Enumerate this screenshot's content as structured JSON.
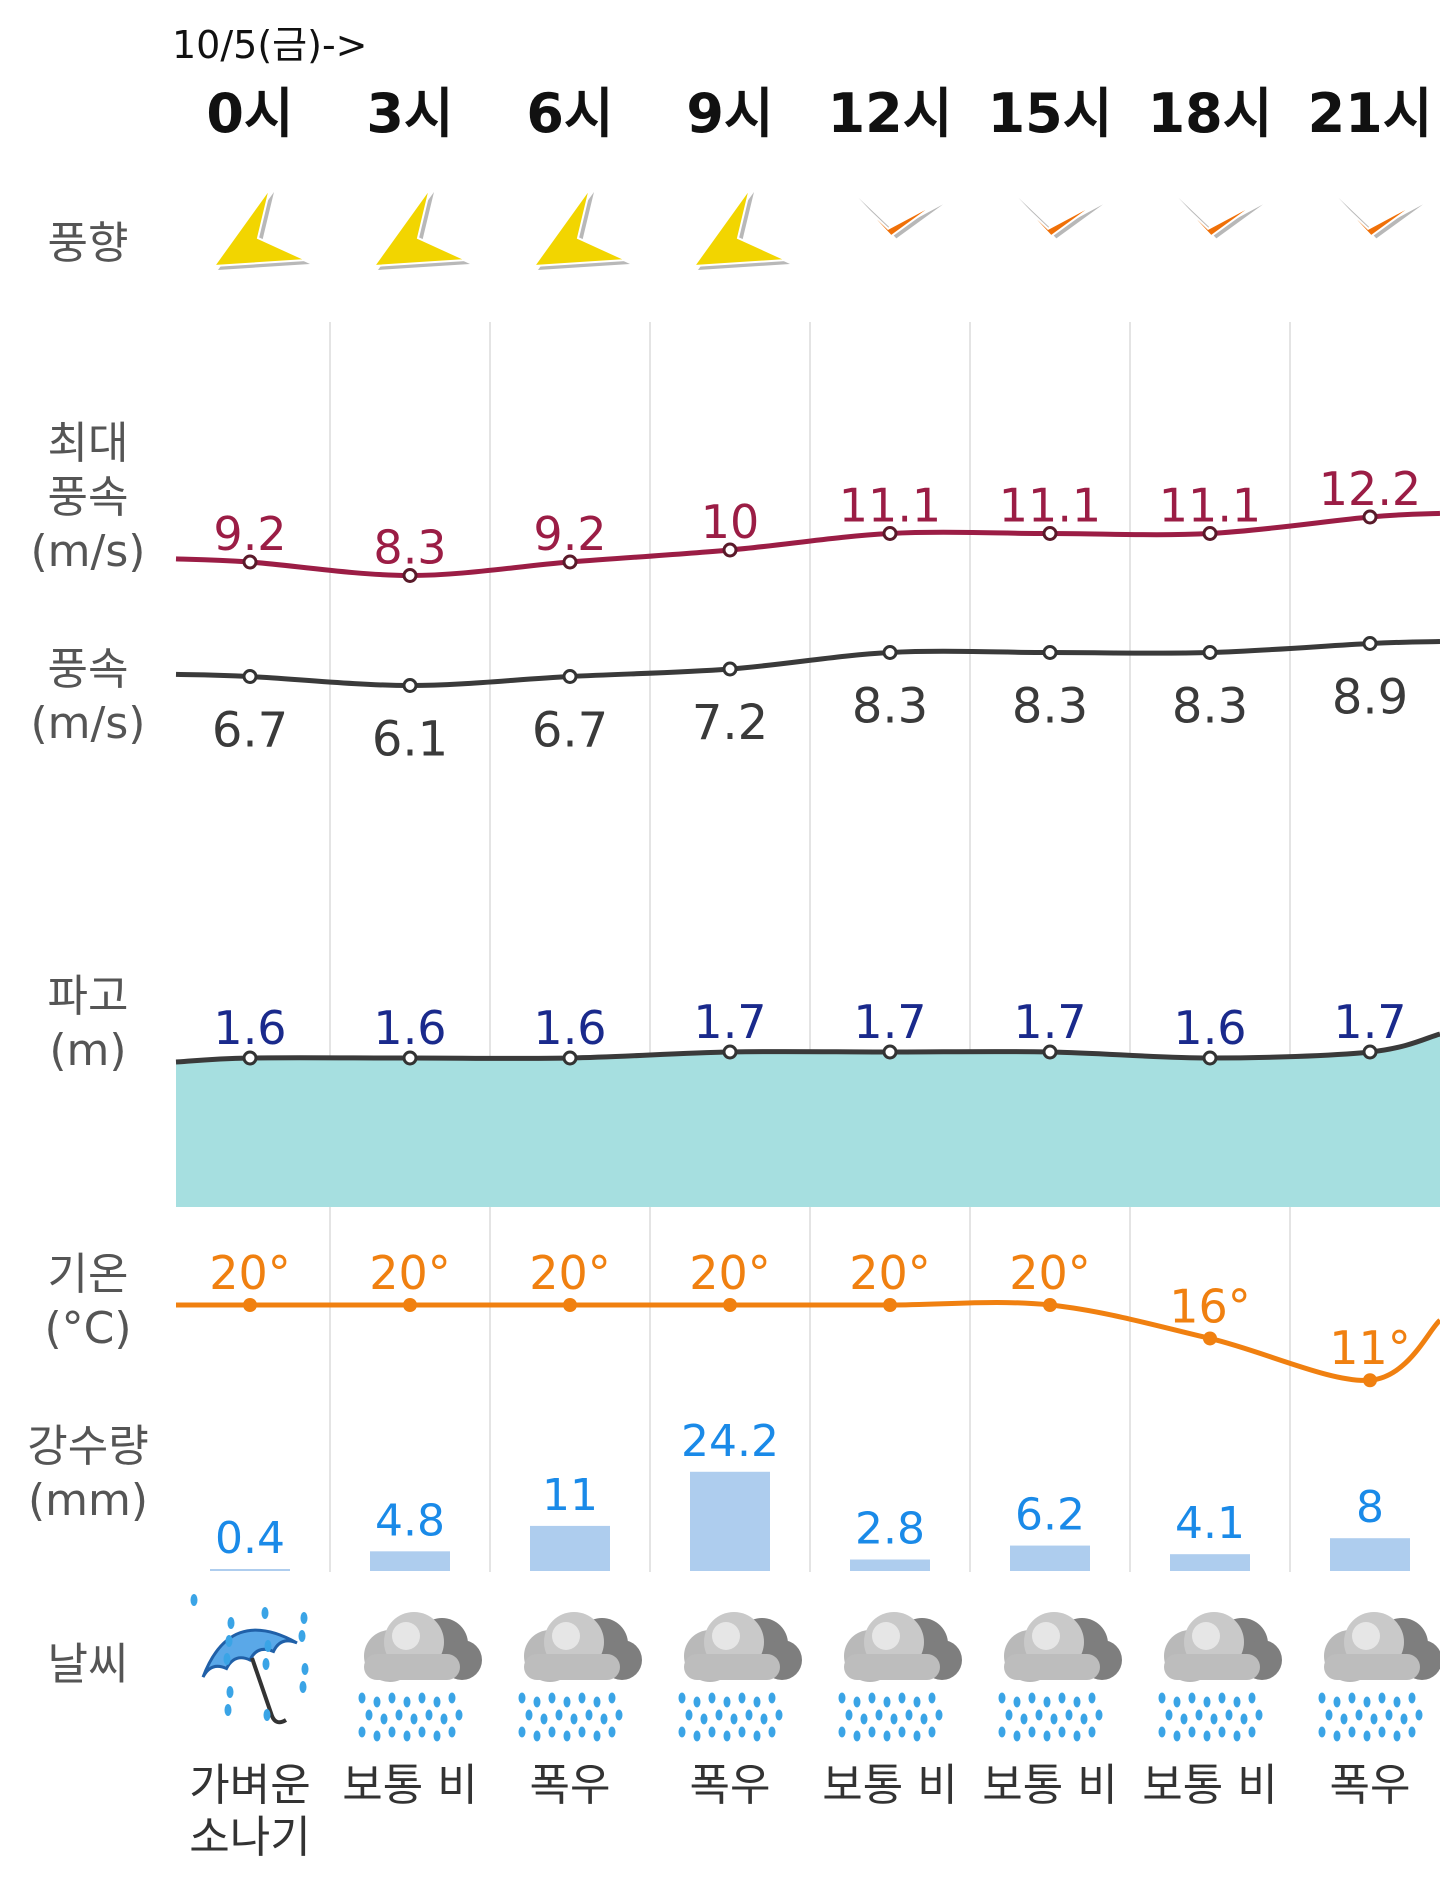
{
  "date_label": "10/5(금)->",
  "labels": {
    "wind_dir": "풍향",
    "max_wind": "최대\n풍속\n(m/s)",
    "wind": "풍속\n(m/s)",
    "wave": "파고\n(m)",
    "temp": "기온\n(°C)",
    "rain": "강수량\n(mm)",
    "weather": "날씨"
  },
  "colors": {
    "max_wind": "#9b1d45",
    "wind": "#3a3a3a",
    "wave_text": "#1a2a8c",
    "wave_fill": "#a6dfe0",
    "temp": "#f08010",
    "rain_text": "#1a8ae8",
    "rain_bar": "#aecdee",
    "arrow_weak": "#f2d500",
    "arrow_strong": "#f07008"
  },
  "chart_data": {
    "type": "table",
    "hours": [
      "0시",
      "3시",
      "6시",
      "9시",
      "12시",
      "15시",
      "18시",
      "21시"
    ],
    "wind_dir_icon": [
      "yellow-arrow-icon",
      "yellow-arrow-icon",
      "yellow-arrow-icon",
      "yellow-arrow-icon",
      "orange-arrow-icon",
      "orange-arrow-icon",
      "orange-arrow-icon",
      "orange-arrow-icon"
    ],
    "max_wind_speed": {
      "values": [
        9.2,
        8.3,
        9.2,
        10,
        11.1,
        11.1,
        11.1,
        12.2
      ],
      "labels": [
        "9.2",
        "8.3",
        "9.2",
        "10",
        "11.1",
        "11.1",
        "11.1",
        "12.2"
      ]
    },
    "wind_speed": {
      "values": [
        6.7,
        6.1,
        6.7,
        7.2,
        8.3,
        8.3,
        8.3,
        8.9
      ],
      "labels": [
        "6.7",
        "6.1",
        "6.7",
        "7.2",
        "8.3",
        "8.3",
        "8.3",
        "8.9"
      ]
    },
    "wave_height": {
      "values": [
        1.6,
        1.6,
        1.6,
        1.7,
        1.7,
        1.7,
        1.6,
        1.7
      ],
      "labels": [
        "1.6",
        "1.6",
        "1.6",
        "1.7",
        "1.7",
        "1.7",
        "1.6",
        "1.7"
      ]
    },
    "temperature": {
      "values": [
        20,
        20,
        20,
        20,
        20,
        20,
        16,
        11
      ],
      "labels": [
        "20°",
        "20°",
        "20°",
        "20°",
        "20°",
        "20°",
        "16°",
        "11°"
      ]
    },
    "precipitation": {
      "values": [
        0.4,
        4.8,
        11,
        24.2,
        2.8,
        6.2,
        4.1,
        8
      ],
      "labels": [
        "0.4",
        "4.8",
        "11",
        "24.2",
        "2.8",
        "6.2",
        "4.1",
        "8"
      ]
    },
    "weather_icon": [
      "umbrella-rain-icon",
      "rain-cloud-icon",
      "rain-cloud-icon",
      "rain-cloud-icon",
      "rain-cloud-icon",
      "rain-cloud-icon",
      "rain-cloud-icon",
      "rain-cloud-icon"
    ],
    "weather": [
      "가벼운\n소나기",
      "보통 비",
      "폭우",
      "폭우",
      "보통 비",
      "보통 비",
      "보통 비",
      "폭우"
    ]
  }
}
